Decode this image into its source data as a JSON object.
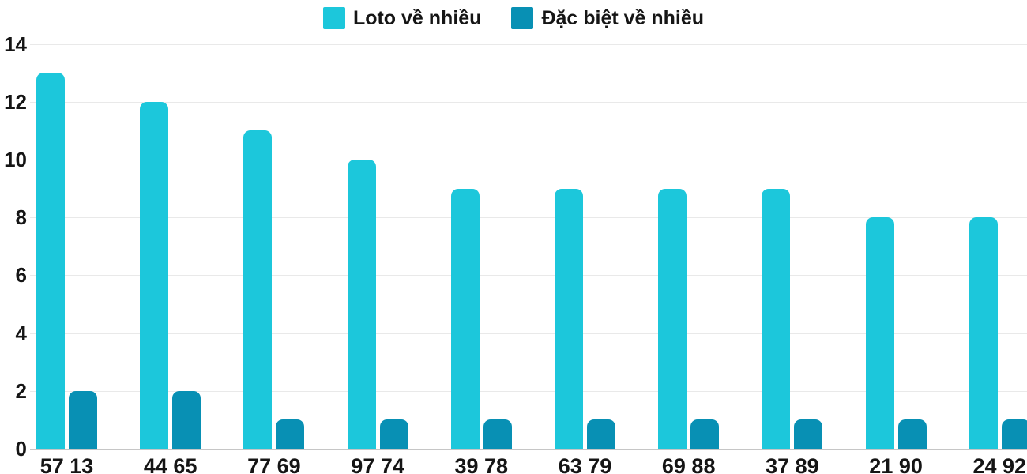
{
  "chart_data": {
    "type": "bar",
    "categories": [
      "57 13",
      "44 65",
      "77 69",
      "97 74",
      "39 78",
      "63 79",
      "69 88",
      "37 89",
      "21 90",
      "24 92"
    ],
    "series": [
      {
        "name": "Loto về nhiều",
        "color": "#1CC7DB",
        "values": [
          13,
          12,
          11,
          10,
          9,
          9,
          9,
          9,
          8,
          8
        ]
      },
      {
        "name": "Đặc biệt về nhiều",
        "color": "#0890B4",
        "values": [
          2,
          2,
          1,
          1,
          1,
          1,
          1,
          1,
          1,
          1
        ]
      }
    ],
    "title": "",
    "xlabel": "",
    "ylabel": "",
    "ylim": [
      0,
      14
    ],
    "yticks": [
      0,
      2,
      4,
      6,
      8,
      10,
      12,
      14
    ],
    "grid": true,
    "legend_position": "top"
  },
  "colors": {
    "grid_line": "#E9E9E9",
    "axis_line": "#C6C6C6",
    "label_text": "#151515",
    "background": "#FFFFFF"
  }
}
